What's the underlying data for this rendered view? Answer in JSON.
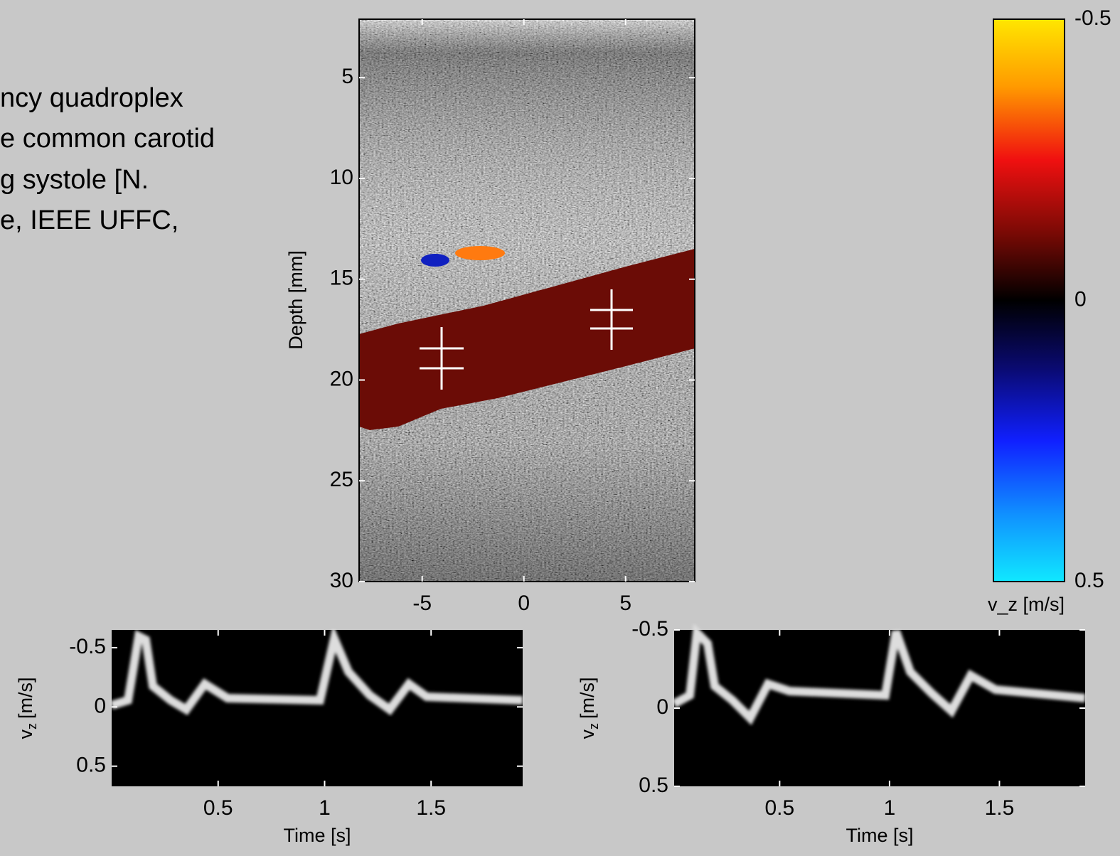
{
  "caption": {
    "lines": [
      "ncy quadroplex",
      "e common carotid",
      "g systole [N.",
      "e, IEEE UFFC,"
    ]
  },
  "chart_data": [
    {
      "type": "image",
      "ylabel": "Depth [mm]",
      "xlim": [
        -8.1,
        8.4
      ],
      "xticks": [
        -5,
        0,
        5
      ],
      "ylim": [
        30,
        2.1
      ],
      "yticks": [
        5,
        10,
        15,
        20,
        25,
        30
      ]
    },
    {
      "type": "colorbar",
      "xlabel": "v_z [m/s]",
      "ylim": [
        0.5,
        -0.5
      ],
      "yticks": [
        -0.5,
        0,
        0.5
      ]
    },
    {
      "type": "spectrogram",
      "xlabel": "Time [s]",
      "ylabel": "v",
      "ylabel_subscript": "z",
      "ylabel_unit": "[m/s]",
      "xlim": [
        0,
        1.93
      ],
      "xticks": [
        0.5,
        1,
        1.5
      ],
      "ylim": [
        0.67,
        -0.65
      ],
      "yticks": [
        -0.5,
        0,
        0.5
      ]
    },
    {
      "type": "spectrogram",
      "xlabel": "Time [s]",
      "ylabel": "v",
      "ylabel_subscript": "z",
      "ylabel_unit": "[m/s]",
      "xlim": [
        0.02,
        1.89
      ],
      "xticks": [
        0.5,
        1,
        1.5
      ],
      "ylim": [
        0.5,
        -0.5
      ],
      "yticks": [
        -0.5,
        0,
        0.5
      ]
    }
  ]
}
